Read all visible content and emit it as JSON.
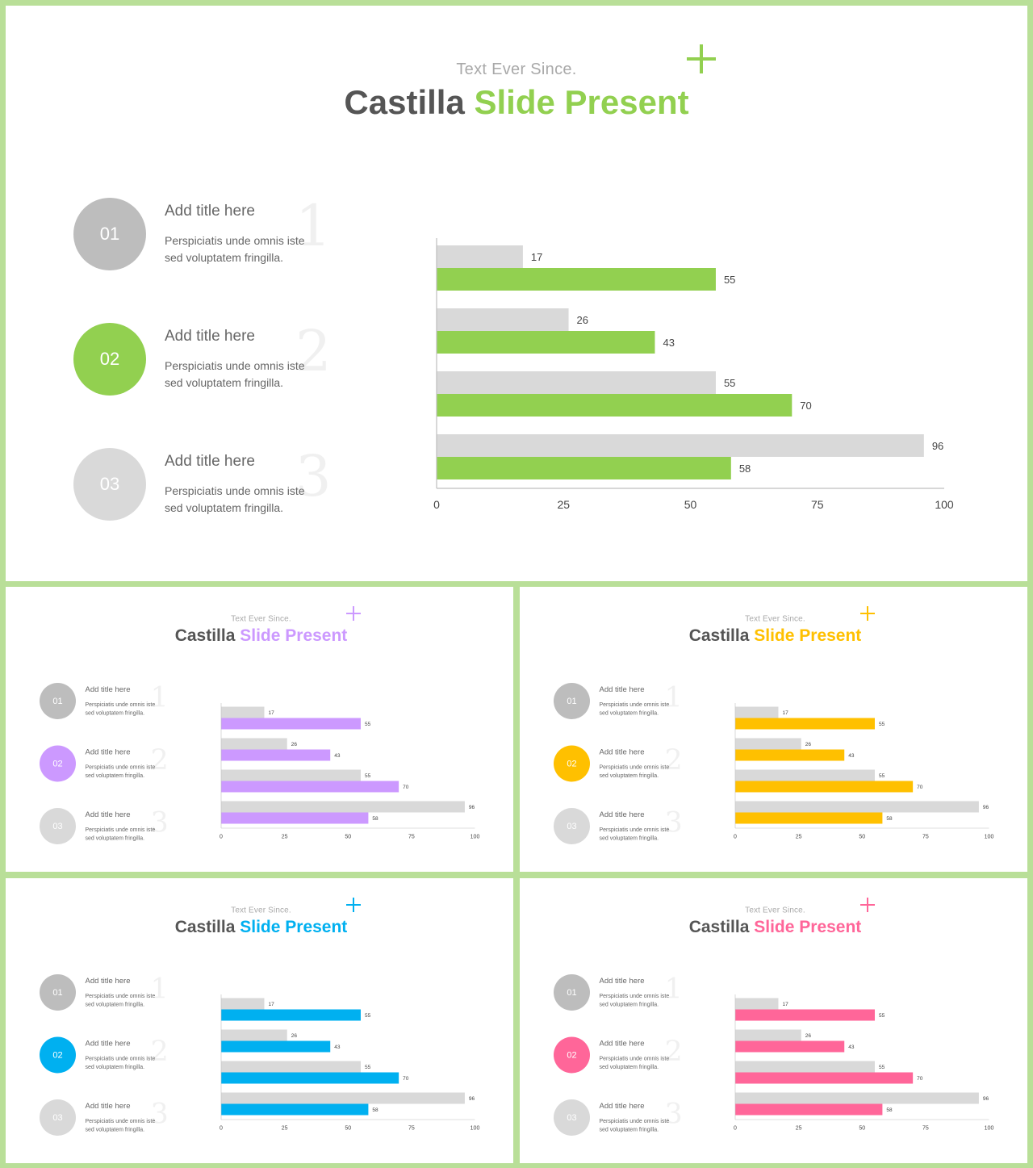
{
  "subtitle": "Text Ever Since.",
  "title_part1": "Castilla",
  "title_part2": "Slide Present",
  "items": [
    {
      "num": "01",
      "title": "Add title here",
      "desc": "Perspiciatis unde omnis iste sed voluptatem fringilla.",
      "big": "1"
    },
    {
      "num": "02",
      "title": "Add title here",
      "desc": "Perspiciatis unde omnis iste sed voluptatem fringilla.",
      "big": "2"
    },
    {
      "num": "03",
      "title": "Add title here",
      "desc": "Perspiciatis unde omnis iste sed voluptatem fringilla.",
      "big": "3"
    }
  ],
  "colors": {
    "circle1": "#bdbdbd",
    "circle3": "#d9d9d9",
    "gray_bar": "#d9d9d9",
    "accents": [
      "#92d050",
      "#cc99ff",
      "#ffc000",
      "#00b0f0",
      "#ff6699"
    ]
  },
  "chart_data": {
    "type": "bar",
    "orientation": "horizontal",
    "series": [
      {
        "values": [
          17,
          26,
          55,
          96
        ]
      },
      {
        "values": [
          55,
          43,
          70,
          58
        ]
      }
    ],
    "xlim": [
      0,
      100
    ],
    "xticks": [
      "0",
      "25",
      "50",
      "75",
      "100"
    ]
  }
}
